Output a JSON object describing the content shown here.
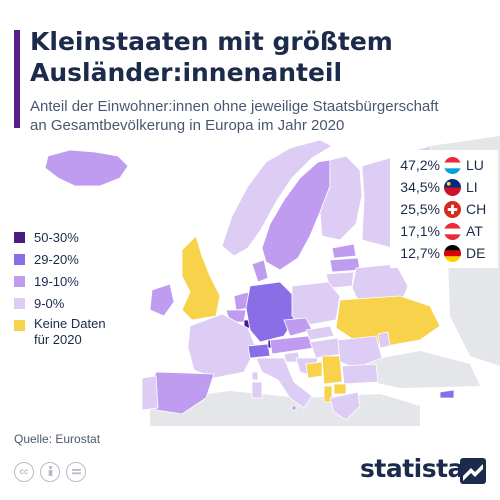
{
  "header": {
    "title_line1": "Kleinstaaten mit größtem",
    "title_line2": "Ausländer:innenanteil",
    "subtitle_line1": "Anteil der Einwohner:innen ohne jeweilige Staatsbürgerschaft",
    "subtitle_line2": "an Gesamtbevölkerung in Europa im Jahr 2020"
  },
  "legend": [
    {
      "label": "50-30%",
      "color": "#4b1b82"
    },
    {
      "label": "29-20%",
      "color": "#8a6ee8"
    },
    {
      "label": "19-10%",
      "color": "#bf9cf0"
    },
    {
      "label": "9-0%",
      "color": "#ddcdf4"
    },
    {
      "label_line1": "Keine Daten",
      "label_line2": "für 2020",
      "color": "#f7d24a"
    }
  ],
  "ranking": [
    {
      "value": "47,2%",
      "code": "LU",
      "flag": "luxembourg-flag"
    },
    {
      "value": "34,5%",
      "code": "LI",
      "flag": "liechtenstein-flag"
    },
    {
      "value": "25,5%",
      "code": "CH",
      "flag": "switzerland-flag"
    },
    {
      "value": "17,1%",
      "code": "AT",
      "flag": "austria-flag"
    },
    {
      "value": "12,7%",
      "code": "DE",
      "flag": "germany-flag"
    }
  ],
  "footer": {
    "source": "Quelle: Eurostat",
    "brand": "statista",
    "license_icons": [
      "cc-icon",
      "by-icon",
      "nd-icon"
    ]
  },
  "colors": {
    "accent": "#5a1e8a",
    "title": "#1c2b4b",
    "land_outside": "#e4e6ea",
    "sea": "#ffffff"
  }
}
